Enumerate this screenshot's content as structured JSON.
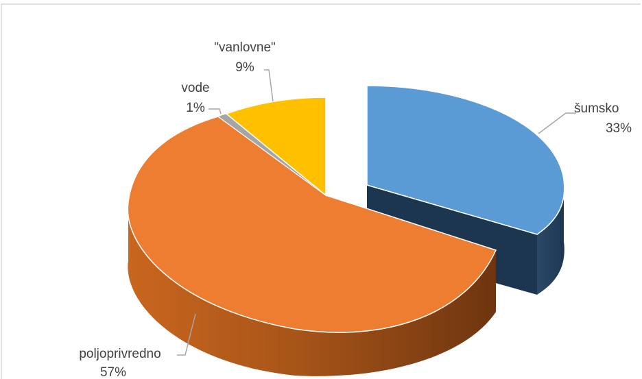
{
  "chart_data": {
    "type": "pie",
    "style": "3d-exploded",
    "legend": "none",
    "slices": [
      {
        "name": "šumsko",
        "percent_label": "33%",
        "value": 33,
        "color": "#5b9bd5"
      },
      {
        "name": "poljoprivredno",
        "percent_label": "57%",
        "value": 57,
        "color": "#ed7d31"
      },
      {
        "name": "vode",
        "percent_label": "1%",
        "value": 1,
        "color": "#a5a5a5"
      },
      {
        "name": "\"vanlovne\"",
        "percent_label": "9%",
        "value": 9,
        "color": "#ffc000"
      }
    ]
  }
}
